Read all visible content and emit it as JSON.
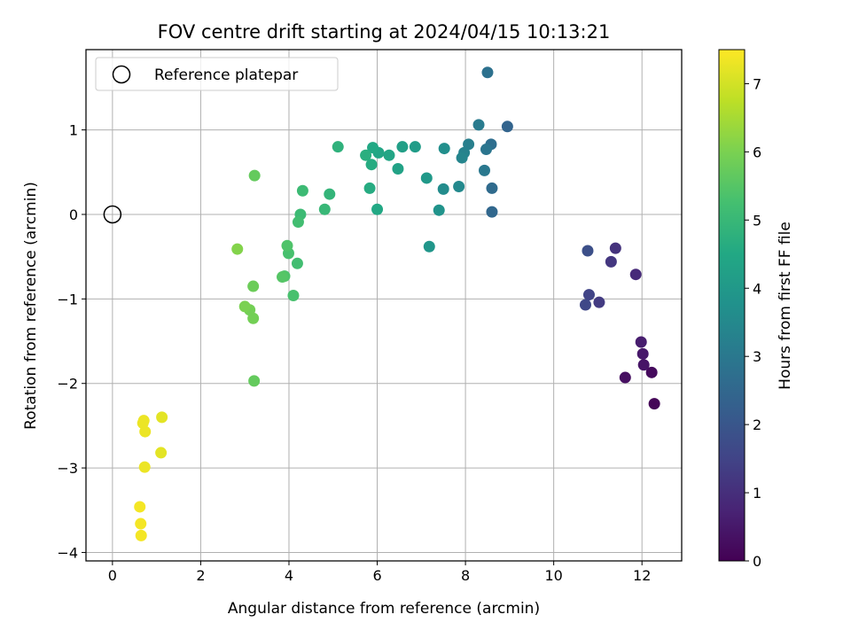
{
  "chart_data": {
    "type": "scatter",
    "title": "FOV centre drift starting at 2024/04/15 10:13:21",
    "xlabel": "Angular distance from reference (arcmin)",
    "ylabel": "Rotation from reference (arcmin)",
    "xlim": [
      -0.6,
      12.9
    ],
    "ylim": [
      -4.1,
      1.95
    ],
    "xticks": [
      0,
      2,
      4,
      6,
      8,
      10,
      12
    ],
    "yticks": [
      -4,
      -3,
      -2,
      -1,
      0,
      1
    ],
    "xtick_labels": [
      "0",
      "2",
      "4",
      "6",
      "8",
      "10",
      "12"
    ],
    "ytick_labels": [
      "−4",
      "−3",
      "−2",
      "−1",
      "0",
      "1"
    ],
    "grid": true,
    "legend": {
      "placement": "upper-left",
      "entries": [
        "Reference platepar"
      ]
    },
    "reference_point": {
      "x": 0,
      "y": 0
    },
    "colorbar": {
      "label": "Hours from first FF file",
      "range": [
        0,
        7.5
      ],
      "ticks": [
        0,
        1,
        2,
        3,
        4,
        5,
        6,
        7
      ],
      "tick_labels": [
        "0",
        "1",
        "2",
        "3",
        "4",
        "5",
        "6",
        "7"
      ],
      "colormap": "viridis"
    },
    "points": [
      {
        "x": 12.28,
        "y": -2.24,
        "h": 0.1
      },
      {
        "x": 12.22,
        "y": -1.87,
        "h": 0.2
      },
      {
        "x": 11.62,
        "y": -1.93,
        "h": 0.3
      },
      {
        "x": 12.04,
        "y": -1.78,
        "h": 0.4
      },
      {
        "x": 12.02,
        "y": -1.65,
        "h": 0.5
      },
      {
        "x": 11.98,
        "y": -1.51,
        "h": 0.6
      },
      {
        "x": 11.86,
        "y": -0.71,
        "h": 0.9
      },
      {
        "x": 11.4,
        "y": -0.4,
        "h": 1.1
      },
      {
        "x": 11.3,
        "y": -0.56,
        "h": 1.2
      },
      {
        "x": 11.03,
        "y": -1.04,
        "h": 1.3
      },
      {
        "x": 10.8,
        "y": -0.95,
        "h": 1.5
      },
      {
        "x": 10.72,
        "y": -1.07,
        "h": 1.6
      },
      {
        "x": 10.77,
        "y": -0.43,
        "h": 1.8
      },
      {
        "x": 8.95,
        "y": 1.04,
        "h": 2.4
      },
      {
        "x": 8.6,
        "y": 0.03,
        "h": 2.5
      },
      {
        "x": 8.6,
        "y": 0.31,
        "h": 2.6
      },
      {
        "x": 8.58,
        "y": 0.83,
        "h": 2.7
      },
      {
        "x": 8.5,
        "y": 1.68,
        "h": 2.8
      },
      {
        "x": 8.47,
        "y": 0.77,
        "h": 2.9
      },
      {
        "x": 8.43,
        "y": 0.52,
        "h": 3.0
      },
      {
        "x": 8.3,
        "y": 1.06,
        "h": 3.1
      },
      {
        "x": 8.07,
        "y": 0.83,
        "h": 3.2
      },
      {
        "x": 7.97,
        "y": 0.73,
        "h": 3.3
      },
      {
        "x": 7.92,
        "y": 0.67,
        "h": 3.4
      },
      {
        "x": 7.85,
        "y": 0.33,
        "h": 3.5
      },
      {
        "x": 7.5,
        "y": 0.3,
        "h": 3.6
      },
      {
        "x": 7.52,
        "y": 0.78,
        "h": 3.7
      },
      {
        "x": 7.4,
        "y": 0.05,
        "h": 3.8
      },
      {
        "x": 7.18,
        "y": -0.38,
        "h": 3.9
      },
      {
        "x": 7.12,
        "y": 0.43,
        "h": 4.0
      },
      {
        "x": 6.86,
        "y": 0.8,
        "h": 4.1
      },
      {
        "x": 6.57,
        "y": 0.8,
        "h": 4.2
      },
      {
        "x": 6.47,
        "y": 0.54,
        "h": 4.3
      },
      {
        "x": 6.27,
        "y": 0.7,
        "h": 4.4
      },
      {
        "x": 6.03,
        "y": 0.73,
        "h": 4.4
      },
      {
        "x": 6.0,
        "y": 0.06,
        "h": 4.5
      },
      {
        "x": 5.9,
        "y": 0.79,
        "h": 4.5
      },
      {
        "x": 5.87,
        "y": 0.59,
        "h": 4.6
      },
      {
        "x": 5.83,
        "y": 0.31,
        "h": 4.6
      },
      {
        "x": 5.74,
        "y": 0.7,
        "h": 4.7
      },
      {
        "x": 5.11,
        "y": 0.8,
        "h": 4.8
      },
      {
        "x": 4.92,
        "y": 0.24,
        "h": 4.9
      },
      {
        "x": 4.81,
        "y": 0.06,
        "h": 5.0
      },
      {
        "x": 4.31,
        "y": 0.28,
        "h": 5.1
      },
      {
        "x": 4.26,
        "y": 0.0,
        "h": 5.1
      },
      {
        "x": 4.21,
        "y": -0.09,
        "h": 5.2
      },
      {
        "x": 4.19,
        "y": -0.58,
        "h": 5.2
      },
      {
        "x": 4.1,
        "y": -0.96,
        "h": 5.3
      },
      {
        "x": 3.99,
        "y": -0.46,
        "h": 5.3
      },
      {
        "x": 3.96,
        "y": -0.37,
        "h": 5.4
      },
      {
        "x": 3.9,
        "y": -0.73,
        "h": 5.4
      },
      {
        "x": 3.85,
        "y": -0.74,
        "h": 5.5
      },
      {
        "x": 3.22,
        "y": 0.46,
        "h": 5.7
      },
      {
        "x": 3.21,
        "y": -1.97,
        "h": 5.7
      },
      {
        "x": 3.19,
        "y": -0.85,
        "h": 5.8
      },
      {
        "x": 3.19,
        "y": -1.23,
        "h": 5.9
      },
      {
        "x": 3.11,
        "y": -1.13,
        "h": 5.9
      },
      {
        "x": 3.0,
        "y": -1.09,
        "h": 6.0
      },
      {
        "x": 2.83,
        "y": -0.41,
        "h": 6.1
      },
      {
        "x": 1.12,
        "y": -2.4,
        "h": 7.2
      },
      {
        "x": 1.1,
        "y": -2.82,
        "h": 7.2
      },
      {
        "x": 0.74,
        "y": -2.57,
        "h": 7.3
      },
      {
        "x": 0.73,
        "y": -2.99,
        "h": 7.3
      },
      {
        "x": 0.71,
        "y": -2.44,
        "h": 7.3
      },
      {
        "x": 0.69,
        "y": -2.47,
        "h": 7.3
      },
      {
        "x": 0.65,
        "y": -3.8,
        "h": 7.4
      },
      {
        "x": 0.64,
        "y": -3.66,
        "h": 7.4
      },
      {
        "x": 0.62,
        "y": -3.46,
        "h": 7.4
      }
    ]
  }
}
